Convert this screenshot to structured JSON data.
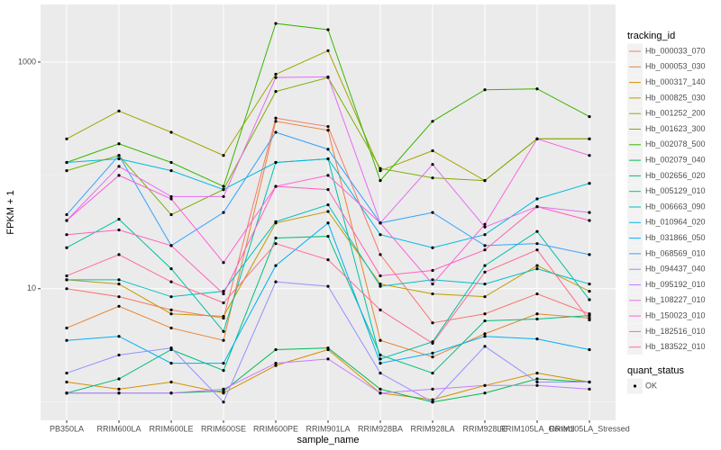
{
  "chart_data": {
    "type": "line",
    "x_label": "sample_name",
    "y_label": "FPKM + 1",
    "log_y": true,
    "grid": true,
    "ylim": [
      0.69,
      3220
    ],
    "yticks": [
      10,
      1000
    ],
    "minor_yticks": [
      1,
      100
    ],
    "legend_title": "tracking_id",
    "legend_position": "right",
    "point_legend": {
      "title": "quant_status",
      "levels": [
        "OK"
      ]
    },
    "categories": [
      "PB350LA",
      "RRIM600LA",
      "RRIM600LE",
      "RRIM600SE",
      "RRIM600PE",
      "RRIM901LA",
      "RRIM928BA",
      "RRIM928LA",
      "RRIM928LE",
      "RRIM105LA_Control",
      "RRIM105LA_Stressed"
    ],
    "series": [
      {
        "name": "Hb_000033_070",
        "color": "#F8766D",
        "values": [
          10,
          8.5,
          6.5,
          5.5,
          320,
          270,
          20,
          5.0,
          6,
          9,
          6
        ]
      },
      {
        "name": "Hb_000053_030",
        "color": "#EA8331",
        "values": [
          4.5,
          7,
          4.5,
          3.5,
          300,
          250,
          3.5,
          2.5,
          4,
          6,
          5.5
        ]
      },
      {
        "name": "Hb_000317_140",
        "color": "#D89000",
        "values": [
          1.5,
          1.3,
          1.5,
          1.2,
          2.1,
          2.9,
          1.2,
          1.05,
          1.4,
          1.8,
          1.5
        ]
      },
      {
        "name": "Hb_000825_030",
        "color": "#C09B00",
        "values": [
          12,
          11,
          6,
          5.7,
          38,
          48,
          11,
          9,
          8.5,
          16,
          9.5
        ]
      },
      {
        "name": "Hb_001252_200",
        "color": "#A3A500",
        "values": [
          210,
          370,
          240,
          150,
          780,
          1260,
          110,
          165,
          90,
          210,
          210
        ]
      },
      {
        "name": "Hb_001623_300",
        "color": "#7CAE00",
        "values": [
          110,
          150,
          45,
          75,
          550,
          730,
          115,
          95,
          90,
          210,
          210
        ]
      },
      {
        "name": "Hb_002078_500",
        "color": "#39B600",
        "values": [
          130,
          190,
          130,
          80,
          2190,
          1930,
          90,
          300,
          570,
          580,
          330
        ]
      },
      {
        "name": "Hb_002079_040",
        "color": "#00BB4E",
        "values": [
          1.2,
          1.2,
          1.2,
          1.25,
          2.9,
          3.0,
          1.3,
          1.0,
          1.2,
          1.6,
          1.5
        ]
      },
      {
        "name": "Hb_002656_020",
        "color": "#00BF7D",
        "values": [
          1.2,
          1.6,
          2.9,
          1.9,
          28,
          29,
          2.6,
          1.8,
          5.2,
          5.4,
          5.8
        ]
      },
      {
        "name": "Hb_005129_010",
        "color": "#00C1A3",
        "values": [
          23,
          41,
          15,
          4.2,
          130,
          140,
          2.4,
          3.4,
          16,
          32,
          8
        ]
      },
      {
        "name": "Hb_006663_090",
        "color": "#00BFC4",
        "values": [
          12,
          12,
          8.5,
          9.5,
          39,
          55,
          10.5,
          12,
          11,
          15,
          11
        ]
      },
      {
        "name": "Hb_010964_020",
        "color": "#00BAE0",
        "values": [
          130,
          140,
          110,
          75,
          130,
          140,
          30,
          23,
          30,
          62,
          85
        ]
      },
      {
        "name": "Hb_031866_050",
        "color": "#00B0F6",
        "values": [
          3.5,
          3.8,
          2.2,
          2.2,
          16,
          38,
          2.2,
          2.7,
          3.8,
          3.6,
          2.9
        ]
      },
      {
        "name": "Hb_068569_010",
        "color": "#35A2FF",
        "values": [
          45,
          150,
          24,
          47,
          240,
          170,
          38,
          47,
          24,
          25,
          20
        ]
      },
      {
        "name": "Hb_094437_040",
        "color": "#9590FF",
        "values": [
          1.8,
          2.6,
          3.0,
          1.0,
          11.5,
          10.5,
          1.8,
          1.0,
          3.1,
          1.5,
          1.5
        ]
      },
      {
        "name": "Hb_095192_010",
        "color": "#C77CFF",
        "values": [
          1.2,
          1.2,
          1.2,
          1.3,
          2.2,
          2.4,
          1.2,
          1.3,
          1.4,
          1.4,
          1.3
        ]
      },
      {
        "name": "Hb_108227_010",
        "color": "#E76BF3",
        "values": [
          40,
          120,
          65,
          65,
          730,
          740,
          38,
          125,
          35,
          53,
          47
        ]
      },
      {
        "name": "Hb_150023_010",
        "color": "#FA62DB",
        "values": [
          40,
          100,
          62,
          17,
          80,
          100,
          38,
          11,
          37,
          210,
          150
        ]
      },
      {
        "name": "Hb_182516_010",
        "color": "#FF62BC",
        "values": [
          30,
          33,
          24,
          9,
          80,
          75,
          13,
          14.5,
          22,
          53,
          40
        ]
      },
      {
        "name": "Hb_183522_010",
        "color": "#FF6C91",
        "values": [
          13,
          20,
          11.5,
          7.5,
          25,
          18,
          6.5,
          3.3,
          14,
          22,
          5.3
        ]
      }
    ]
  }
}
